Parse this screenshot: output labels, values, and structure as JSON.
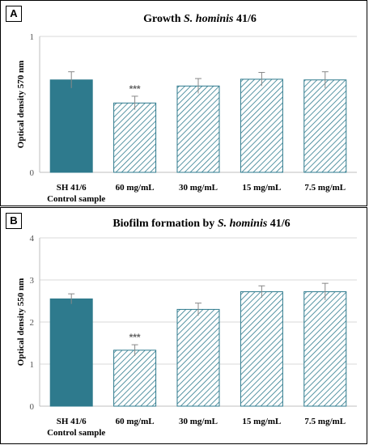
{
  "colors": {
    "control_fill": "#2e7a8d",
    "hatch_stroke": "#2e7a8d",
    "error_bar": "#888888",
    "gridline": "#d9d9d9",
    "axis": "#bfbfbf"
  },
  "chart_data": [
    {
      "panel_label": "A",
      "type": "bar",
      "title_prefix": "Growth ",
      "title_italic": "S. hominis",
      "title_suffix": " 41/6",
      "ylabel": "Optical density 570 nm",
      "ylim": [
        0,
        1
      ],
      "yticks": [
        "0",
        "1"
      ],
      "grid": true,
      "categories": [
        "SH 41/6",
        "60 mg/mL",
        "30 mg/mL",
        "15 mg/mL",
        "7.5 mg/mL"
      ],
      "category_sublabel": "Control sample",
      "values": [
        0.68,
        0.51,
        0.635,
        0.685,
        0.68
      ],
      "errors": [
        0.06,
        0.05,
        0.055,
        0.05,
        0.06
      ],
      "fill_styles": [
        "solid",
        "hatched",
        "hatched",
        "hatched",
        "hatched"
      ],
      "annotations": [
        {
          "category": "60 mg/mL",
          "text": "***"
        }
      ]
    },
    {
      "panel_label": "B",
      "type": "bar",
      "title_prefix": "Biofilm formation by ",
      "title_italic": "S. hominis",
      "title_suffix": " 41/6",
      "ylabel": "Optical density 550 nm",
      "ylim": [
        0,
        4
      ],
      "yticks": [
        "0",
        "1",
        "2",
        "3",
        "4"
      ],
      "grid": true,
      "categories": [
        "SH 41/6",
        "60 mg/mL",
        "30 mg/mL",
        "15 mg/mL",
        "7.5 mg/mL"
      ],
      "category_sublabel": "Control sample",
      "values": [
        2.55,
        1.33,
        2.3,
        2.72,
        2.72
      ],
      "errors": [
        0.12,
        0.13,
        0.15,
        0.14,
        0.2
      ],
      "fill_styles": [
        "solid",
        "hatched",
        "hatched",
        "hatched",
        "hatched"
      ],
      "annotations": [
        {
          "category": "60 mg/mL",
          "text": "***"
        }
      ]
    }
  ]
}
